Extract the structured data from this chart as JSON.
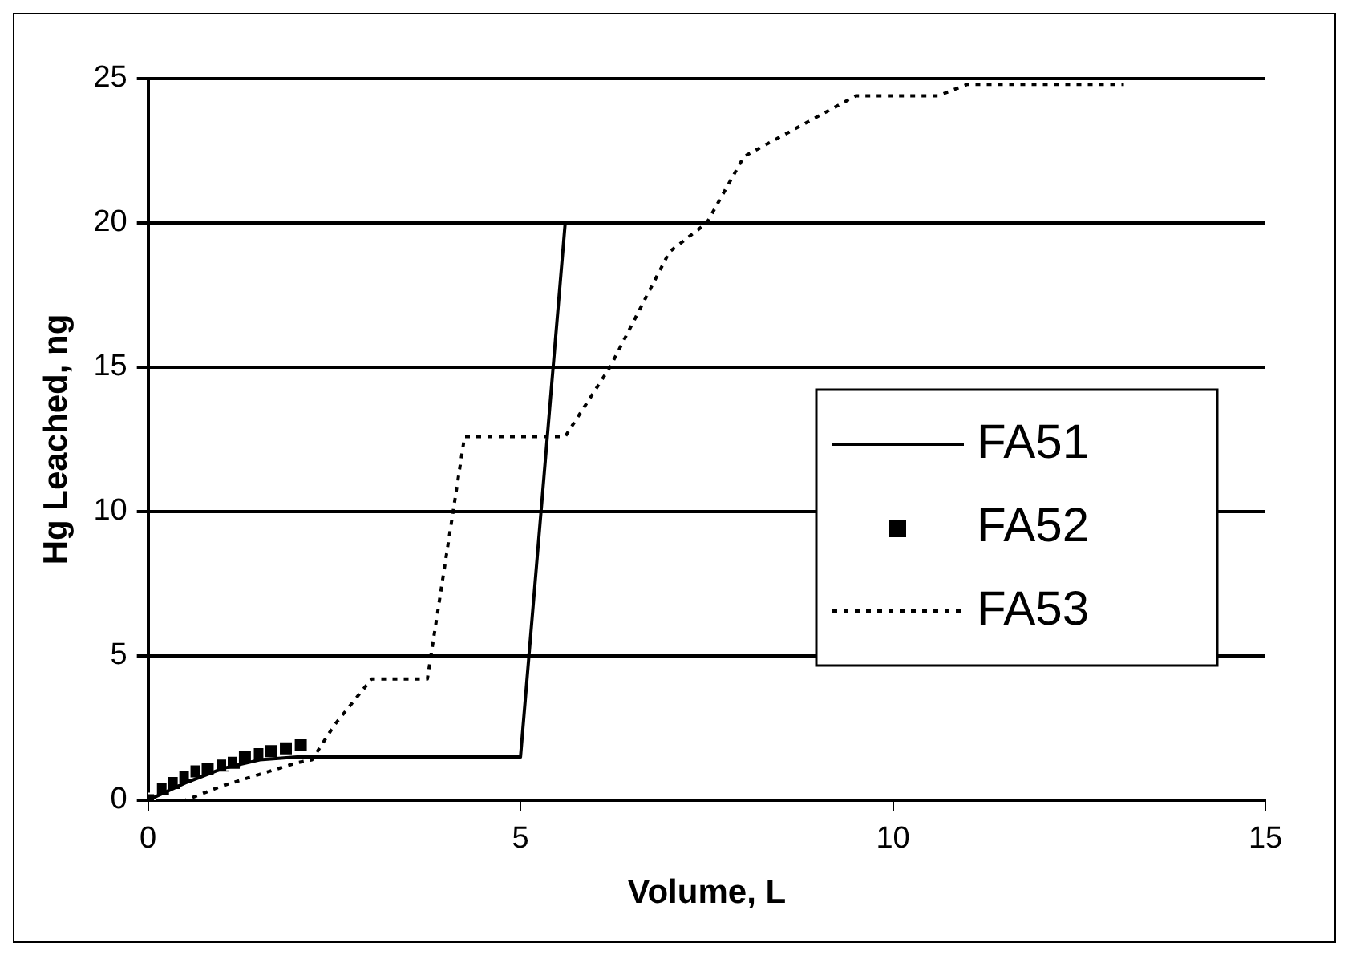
{
  "chart_data": {
    "type": "line",
    "xlabel": "Volume, L",
    "ylabel": "Hg Leached, ng",
    "xlim": [
      0,
      15
    ],
    "xticks": [
      0,
      5,
      10,
      15
    ],
    "ylim": [
      0,
      25
    ],
    "yticks": [
      0,
      5,
      10,
      15,
      20,
      25
    ],
    "grid": "y",
    "legend": "right",
    "series": [
      {
        "name": "FA51",
        "color": "#000000",
        "marker": "none",
        "line_style": "solid",
        "x": [
          0,
          0.5,
          1,
          1.5,
          2,
          5,
          5.6,
          15
        ],
        "values": [
          0,
          0.6,
          1.1,
          1.4,
          1.5,
          1.5,
          20,
          20
        ]
      },
      {
        "name": "FA52",
        "type": "scatter",
        "color": "#000000",
        "marker": "square",
        "x": [
          0,
          0.2,
          0.35,
          0.5,
          0.65,
          0.8,
          1.0,
          1.15,
          1.3,
          1.5,
          1.65,
          1.85,
          2.05
        ],
        "values": [
          0,
          0.4,
          0.6,
          0.8,
          1.0,
          1.1,
          1.2,
          1.3,
          1.5,
          1.6,
          1.7,
          1.8,
          1.9
        ]
      },
      {
        "name": "FA53",
        "color": "#000000",
        "marker": "none",
        "line_style": "dotted",
        "x": [
          0,
          0.5,
          1,
          1.5,
          2,
          2.2,
          2.5,
          3,
          3.75,
          4.25,
          5.6,
          6.2,
          7,
          7.5,
          8,
          9.5,
          10.6,
          11,
          13.1
        ],
        "values": [
          0,
          0,
          0.5,
          0.9,
          1.3,
          1.4,
          2.6,
          4.2,
          4.2,
          12.6,
          12.6,
          15,
          19,
          20,
          22.3,
          24.4,
          24.4,
          24.8,
          24.8
        ]
      }
    ]
  }
}
